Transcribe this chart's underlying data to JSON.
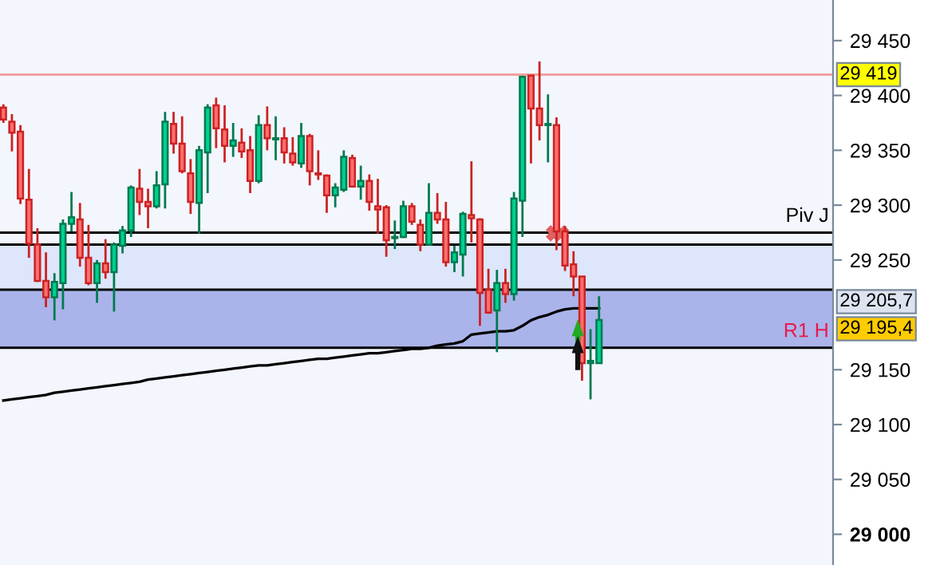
{
  "chart_data": {
    "type": "candlestick",
    "categories": [
      null,
      null,
      null,
      null,
      null,
      null,
      null,
      null,
      null,
      null,
      null,
      null,
      null,
      null,
      null,
      null,
      null,
      null,
      null,
      null,
      null,
      null,
      null,
      null,
      null,
      null,
      null,
      null,
      null,
      null,
      null,
      null,
      null,
      null,
      null,
      null,
      null,
      null,
      null,
      null,
      null,
      null,
      null,
      null,
      null,
      null,
      null,
      null,
      null,
      null,
      null,
      null,
      null,
      null,
      null,
      null,
      null,
      null,
      null,
      null,
      null,
      null,
      null,
      null,
      null,
      null,
      null,
      null,
      null,
      null,
      null
    ],
    "ohlc": [
      [
        29389,
        29392,
        29375,
        29378
      ],
      [
        29376,
        29383,
        29349,
        29366
      ],
      [
        29367,
        29373,
        29301,
        29306
      ],
      [
        29305,
        29333,
        29252,
        29265
      ],
      [
        29264,
        29279,
        29230,
        29231
      ],
      [
        29231,
        29257,
        29207,
        29216
      ],
      [
        29216,
        29238,
        29195,
        29230
      ],
      [
        29229,
        29287,
        29205,
        29283
      ],
      [
        29283,
        29312,
        29276,
        29289
      ],
      [
        29287,
        29302,
        29244,
        29252
      ],
      [
        29252,
        29282,
        29227,
        29229
      ],
      [
        29229,
        29250,
        29211,
        29247
      ],
      [
        29247,
        29269,
        29233,
        29239
      ],
      [
        29239,
        29266,
        29203,
        29264
      ],
      [
        29263,
        29281,
        29256,
        29277
      ],
      [
        29277,
        29318,
        29271,
        29316
      ],
      [
        29315,
        29333,
        29291,
        29303
      ],
      [
        29303,
        29315,
        29279,
        29299
      ],
      [
        29299,
        29331,
        29297,
        29318
      ],
      [
        29319,
        29385,
        29297,
        29376
      ],
      [
        29374,
        29385,
        29347,
        29356
      ],
      [
        29356,
        29381,
        29329,
        29331
      ],
      [
        29329,
        29342,
        29292,
        29303
      ],
      [
        29302,
        29354,
        29274,
        29350
      ],
      [
        29348,
        29392,
        29311,
        29389
      ],
      [
        29391,
        29398,
        29352,
        29370
      ],
      [
        29369,
        29391,
        29339,
        29354
      ],
      [
        29354,
        29375,
        29344,
        29359
      ],
      [
        29357,
        29370,
        29343,
        29349
      ],
      [
        29350,
        29363,
        29311,
        29322
      ],
      [
        29322,
        29382,
        29320,
        29373
      ],
      [
        29373,
        29390,
        29350,
        29361
      ],
      [
        29360,
        29381,
        29341,
        29361
      ],
      [
        29361,
        29371,
        29338,
        29348
      ],
      [
        29347,
        29362,
        29336,
        29339
      ],
      [
        29338,
        29375,
        29334,
        29363
      ],
      [
        29363,
        29365,
        29318,
        29331
      ],
      [
        29329,
        29350,
        29323,
        29328
      ],
      [
        29327,
        29328,
        29293,
        29309
      ],
      [
        29309,
        29320,
        29298,
        29316
      ],
      [
        29314,
        29350,
        29312,
        29344
      ],
      [
        29343,
        29346,
        29316,
        29317
      ],
      [
        29317,
        29336,
        29305,
        29322
      ],
      [
        29322,
        29328,
        29295,
        29303
      ],
      [
        29299,
        29324,
        29274,
        29296
      ],
      [
        29298,
        29300,
        29253,
        29268
      ],
      [
        29270,
        29286,
        29260,
        29271
      ],
      [
        29271,
        29304,
        29270,
        29299
      ],
      [
        29299,
        29302,
        29282,
        29285
      ],
      [
        29282,
        29287,
        29258,
        29264
      ],
      [
        29264,
        29320,
        29263,
        29293
      ],
      [
        29293,
        29311,
        29283,
        29287
      ],
      [
        29287,
        29303,
        29244,
        29248
      ],
      [
        29248,
        29263,
        29239,
        29257
      ],
      [
        29255,
        29294,
        29235,
        29292
      ],
      [
        29291,
        29340,
        29266,
        29288
      ],
      [
        29287,
        29288,
        29190,
        29220
      ],
      [
        29223,
        29242,
        29201,
        29202
      ],
      [
        29204,
        29241,
        29166,
        29229
      ],
      [
        29229,
        29242,
        29211,
        29219
      ],
      [
        29219,
        29312,
        29213,
        29306
      ],
      [
        29304,
        29418,
        29271,
        29417
      ],
      [
        29418,
        29418,
        29338,
        29388
      ],
      [
        29388,
        29431,
        29359,
        29373
      ],
      [
        29373,
        29401,
        29339,
        29374
      ],
      [
        29373,
        29380,
        29259,
        29276
      ],
      [
        29276,
        29281,
        29240,
        29245
      ],
      [
        29246,
        29258,
        29217,
        29235
      ],
      [
        29235,
        29235,
        29140,
        29156
      ],
      [
        29156,
        29187,
        29123,
        29158
      ],
      [
        29156,
        29217,
        29156,
        29195.4
      ]
    ],
    "series": [
      {
        "type": "line",
        "color": "#000000",
        "values": [
          29122,
          29123,
          29124,
          29125,
          29126,
          29127,
          29129,
          29130,
          29131,
          29132,
          29133,
          29134,
          29135,
          29136,
          29137,
          29138,
          29139,
          29141,
          29142,
          29143,
          29144,
          29145,
          29146,
          29147,
          29148,
          29149,
          29150,
          29151,
          29152,
          29153,
          29154,
          29154,
          29155,
          29156,
          29157,
          29158,
          29159,
          29160,
          29160,
          29161,
          29162,
          29163,
          29164,
          29165,
          29165,
          29166,
          29167,
          29168,
          29169,
          29169,
          29170,
          29172,
          29173,
          29174,
          29176,
          29182,
          29183,
          29184,
          29185,
          29185,
          29186,
          29190,
          29195,
          29198,
          29200,
          29203,
          29205,
          29206,
          29206,
          29206,
          29206
        ]
      }
    ],
    "ylim": [
      28972,
      29487
    ],
    "yticks": [
      {
        "value": 29000,
        "label": "29 000"
      },
      {
        "value": 29050,
        "label": "29 050"
      },
      {
        "value": 29100,
        "label": "29 100"
      },
      {
        "value": 29150,
        "label": "29 150"
      },
      {
        "value": 29250,
        "label": "29 250"
      },
      {
        "value": 29300,
        "label": "29 300"
      },
      {
        "value": 29350,
        "label": "29 350"
      },
      {
        "value": 29400,
        "label": "29 400"
      },
      {
        "value": 29450,
        "label": "29 450"
      }
    ],
    "tick_labels": "y",
    "grid": false,
    "legend": false,
    "ref_lines": [
      {
        "axis": "y",
        "value": 29419,
        "label": null,
        "color": "#f0a0a0"
      },
      {
        "axis": "y",
        "value": 29275,
        "label": "Piv J",
        "color": "#000000"
      },
      {
        "axis": "y",
        "value": 29264,
        "label": null,
        "color": "#000000"
      },
      {
        "axis": "y",
        "value": 29223,
        "label": null,
        "color": "#000000"
      },
      {
        "axis": "y",
        "value": 29170,
        "label": "R1 H",
        "color": "#000000"
      }
    ],
    "bands": [
      {
        "axis": "y",
        "from": 29170,
        "to": 29264,
        "label": null,
        "color": "#dde6fb"
      },
      {
        "axis": "y",
        "from": 29170,
        "to": 29223,
        "label": null,
        "color": "#aab4ea"
      }
    ],
    "annotations": [
      "29 419",
      "29 205,7",
      "29 195,4"
    ]
  }
}
